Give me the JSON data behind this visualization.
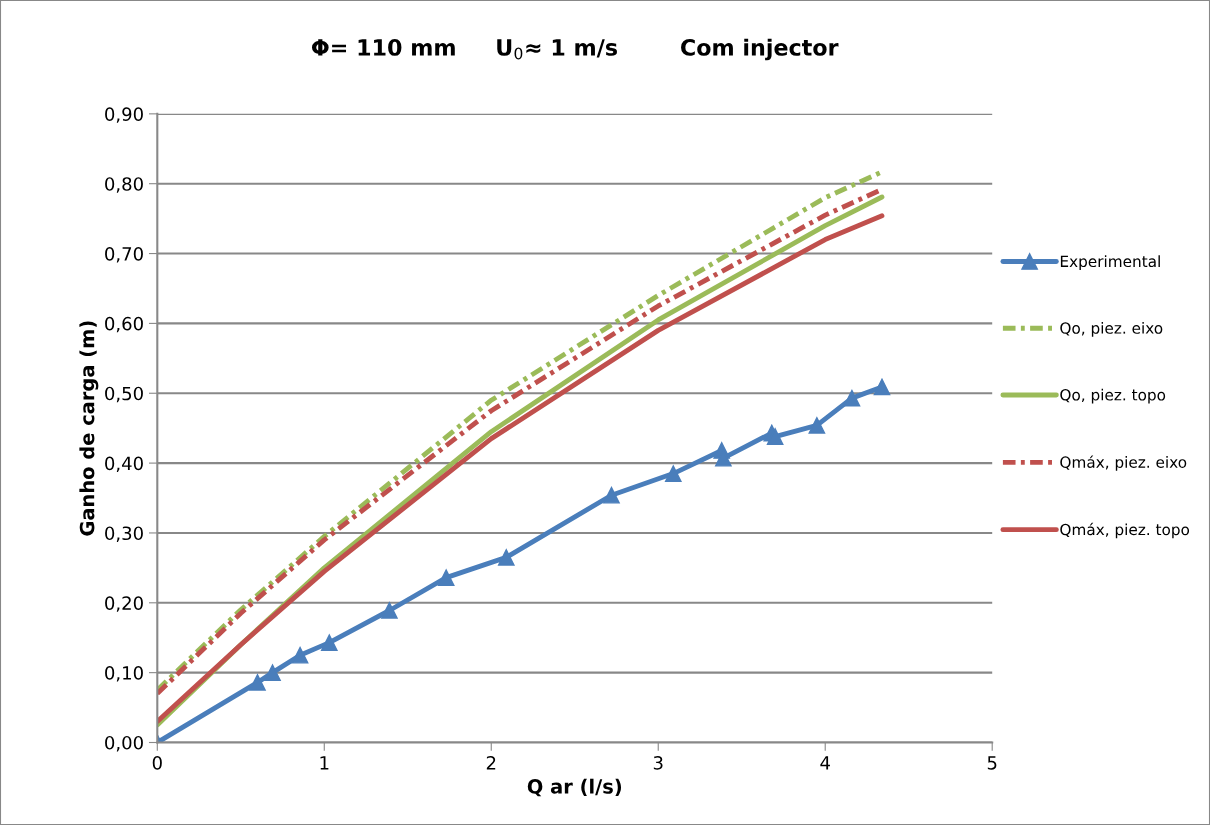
{
  "chart_data": {
    "type": "line",
    "title": "Φ= 110 mm     U$_{0}$≈ 1 m/s        Com injector",
    "xlabel": "Q ar (l/s)",
    "ylabel": "Ganho de carga (m)",
    "xlim": [
      0,
      5
    ],
    "xticks": [
      0,
      1,
      2,
      3,
      4,
      5
    ],
    "ylim": [
      0,
      0.9
    ],
    "yticks": [
      {
        "value": 0,
        "label": "0,00"
      },
      {
        "value": 0.1,
        "label": "0,10"
      },
      {
        "value": 0.2,
        "label": "0,20"
      },
      {
        "value": 0.3,
        "label": "0,30"
      },
      {
        "value": 0.4,
        "label": "0,40"
      },
      {
        "value": 0.5,
        "label": "0,50"
      },
      {
        "value": 0.6,
        "label": "0,60"
      },
      {
        "value": 0.7,
        "label": "0,70"
      },
      {
        "value": 0.8,
        "label": "0,80"
      },
      {
        "value": 0.9,
        "label": "0,90"
      }
    ],
    "grid": "y",
    "legend": "right",
    "series": [
      {
        "name": "Experimental",
        "color": "#4a7ebb",
        "marker": "triangle",
        "line_style": "solid",
        "x": [
          0,
          0.6,
          0.69,
          0.855,
          1.03,
          1.39,
          1.73,
          2.09,
          2.72,
          3.09,
          3.38,
          3.39,
          3.68,
          3.7,
          3.95,
          4.16,
          4.34
        ],
        "values": [
          0,
          0.086,
          0.1,
          0.125,
          0.143,
          0.189,
          0.236,
          0.265,
          0.354,
          0.385,
          0.418,
          0.407,
          0.443,
          0.438,
          0.454,
          0.493,
          0.509
        ]
      },
      {
        "name": "Qo, piez. eixo",
        "color": "#9bbb59",
        "marker": "none",
        "line_style": "dashdot",
        "x": [
          0,
          0.5,
          1,
          2,
          3,
          4,
          4.34
        ],
        "values": [
          0.075,
          0.19,
          0.295,
          0.49,
          0.64,
          0.78,
          0.817
        ]
      },
      {
        "name": "Qo, piez. topo",
        "color": "#9bbb59",
        "marker": "none",
        "line_style": "solid",
        "x": [
          0,
          0.5,
          1,
          2,
          3,
          4,
          4.34
        ],
        "values": [
          0.025,
          0.14,
          0.25,
          0.445,
          0.605,
          0.74,
          0.781
        ]
      },
      {
        "name": "Qmáx, piez. eixo",
        "color": "#c0504d",
        "marker": "none",
        "line_style": "dashdot",
        "x": [
          0,
          0.5,
          1,
          2,
          3,
          4,
          4.34
        ],
        "values": [
          0.07,
          0.185,
          0.29,
          0.475,
          0.625,
          0.755,
          0.792
        ]
      },
      {
        "name": "Qmáx, piez. topo",
        "color": "#c0504d",
        "marker": "none",
        "line_style": "solid",
        "x": [
          0,
          0.5,
          1,
          2,
          3,
          4,
          4.34
        ],
        "values": [
          0.03,
          0.14,
          0.245,
          0.435,
          0.59,
          0.72,
          0.754
        ]
      }
    ]
  }
}
